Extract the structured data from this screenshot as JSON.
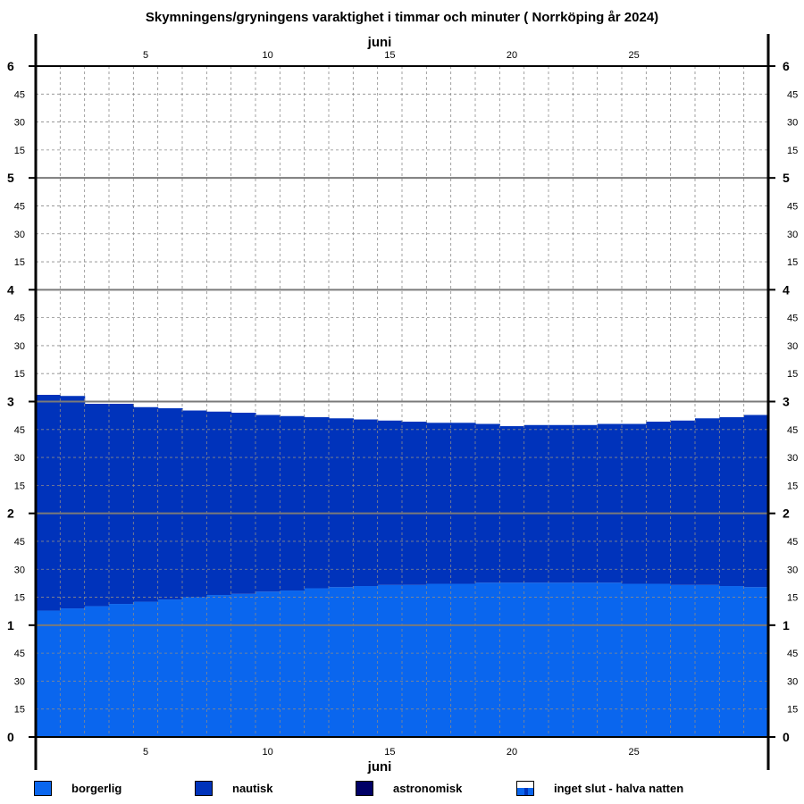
{
  "chart_data": {
    "type": "bar",
    "stacked": true,
    "title": "Skymningens/gryningens varaktighet i timmar och minuter  ( Norrköping år 2024)",
    "x_label": "juni",
    "x_tick_labels": [
      "5",
      "10",
      "15",
      "20",
      "25"
    ],
    "x_tick_values": [
      5,
      10,
      15,
      20,
      25
    ],
    "days": [
      1,
      2,
      3,
      4,
      5,
      6,
      7,
      8,
      9,
      10,
      11,
      12,
      13,
      14,
      15,
      16,
      17,
      18,
      19,
      20,
      21,
      22,
      23,
      24,
      25,
      26,
      27,
      28,
      29,
      30
    ],
    "ylim": [
      0,
      6
    ],
    "y_unit": "timmar",
    "y_hour_labels": [
      "0",
      "1",
      "2",
      "3",
      "4",
      "5",
      "6"
    ],
    "y_minute_labels": [
      "15",
      "30",
      "45"
    ],
    "grid": true,
    "series": [
      {
        "name": "borgerlig",
        "color": "#0a66ee",
        "values": [
          1.13,
          1.15,
          1.17,
          1.19,
          1.21,
          1.23,
          1.25,
          1.27,
          1.28,
          1.3,
          1.31,
          1.33,
          1.34,
          1.35,
          1.36,
          1.36,
          1.37,
          1.37,
          1.38,
          1.38,
          1.38,
          1.38,
          1.38,
          1.38,
          1.37,
          1.37,
          1.36,
          1.36,
          1.35,
          1.34
        ]
      },
      {
        "name": "nautisk",
        "color": "#0033bb",
        "values": [
          1.93,
          1.9,
          1.81,
          1.79,
          1.74,
          1.71,
          1.67,
          1.64,
          1.62,
          1.58,
          1.56,
          1.53,
          1.51,
          1.49,
          1.47,
          1.46,
          1.44,
          1.44,
          1.42,
          1.4,
          1.41,
          1.41,
          1.41,
          1.42,
          1.43,
          1.45,
          1.47,
          1.49,
          1.51,
          1.54
        ]
      },
      {
        "name": "astronomisk",
        "color": "#000066",
        "values": [
          0,
          0,
          0,
          0,
          0,
          0,
          0,
          0,
          0,
          0,
          0,
          0,
          0,
          0,
          0,
          0,
          0,
          0,
          0,
          0,
          0,
          0,
          0,
          0,
          0,
          0,
          0,
          0,
          0,
          0
        ]
      }
    ],
    "legend": [
      {
        "key": "borgerlig",
        "label": "borgerlig",
        "color": "#0a66ee"
      },
      {
        "key": "nautisk",
        "label": "nautisk",
        "color": "#0033bb"
      },
      {
        "key": "astronomisk",
        "label": "astronomisk",
        "color": "#000066"
      },
      {
        "key": "inget-slut",
        "label": "inget slut - halva natten",
        "color": "#0a66ee"
      }
    ],
    "legend_placement": "bottom"
  }
}
